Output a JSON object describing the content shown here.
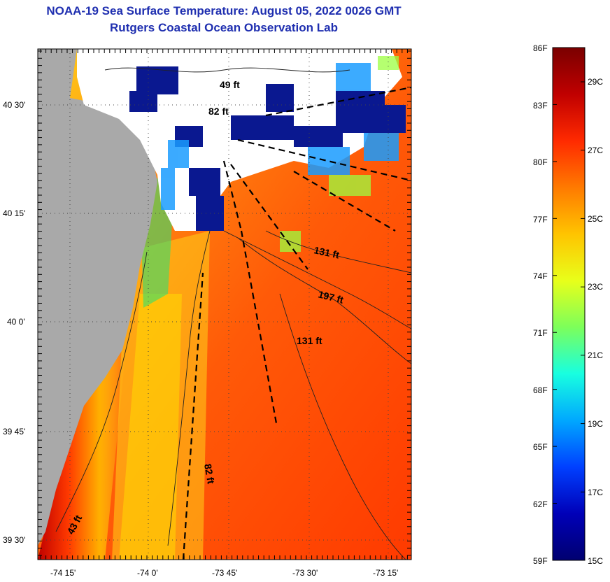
{
  "title_line1": "NOAA-19 Sea Surface Temperature:  August 05, 2022 0026 GMT",
  "title_line2": "Rutgers Coastal Ocean Observation Lab",
  "lat_labels": [
    "40 30'",
    "40 15'",
    "40 0'",
    "39 45'",
    "39 30'"
  ],
  "lon_labels": [
    "-74 15'",
    "-74 0'",
    "-73 45'",
    "-73 30'",
    "-73 15'"
  ],
  "contour_labels": [
    "49 ft",
    "82 ft",
    "131 ft",
    "197 ft",
    "131 ft",
    "82 ft",
    "43 ft"
  ],
  "colorbar": {
    "f_labels": [
      "86F",
      "83F",
      "80F",
      "77F",
      "74F",
      "71F",
      "68F",
      "65F",
      "62F",
      "59F"
    ],
    "c_labels": [
      "29C",
      "27C",
      "25C",
      "23C",
      "21C",
      "19C",
      "17C",
      "15C"
    ],
    "colors": [
      "#7a0000",
      "#c00000",
      "#ff2a00",
      "#ff7a00",
      "#ffc400",
      "#e8ff1a",
      "#7dff5a",
      "#18ffe0",
      "#00a8ff",
      "#0040ff",
      "#0000b8",
      "#000070"
    ]
  },
  "colors": {
    "land": "#a9a9a9",
    "cloud": "#ffffff",
    "title": "#1f2fb0"
  }
}
